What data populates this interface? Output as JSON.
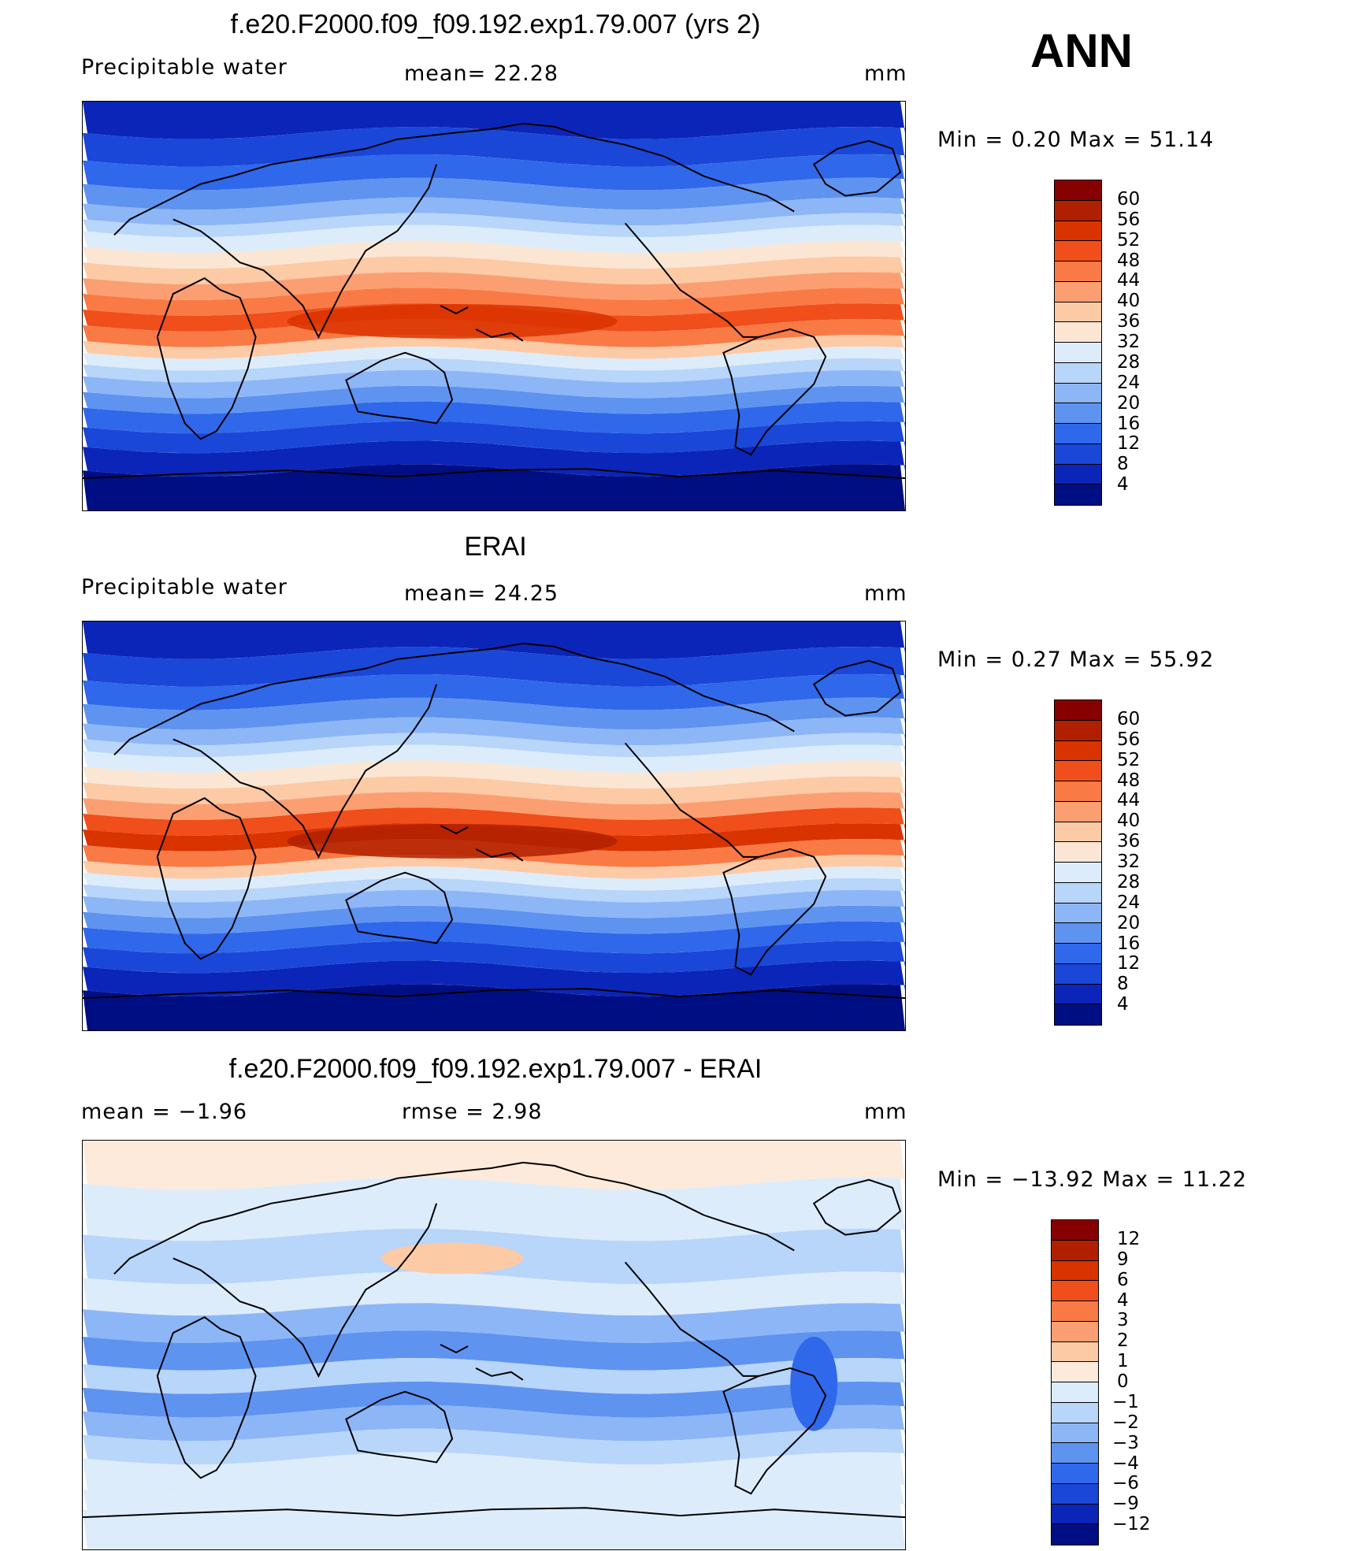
{
  "annotation": "ANN",
  "panels": [
    {
      "title": "f.e20.F2000.f09_f09.192.exp1.79.007 (yrs 2)",
      "left_label": "Precipitable  water",
      "center_label": "mean=   22.28",
      "units": "mm",
      "minmax": "Min  =     0.20  Max  =     51.14",
      "colorbar_levels": [
        "60",
        "56",
        "52",
        "48",
        "44",
        "40",
        "36",
        "32",
        "28",
        "24",
        "20",
        "16",
        "12",
        "8",
        "4"
      ],
      "colorbar_colors": [
        "#870000",
        "#b02000",
        "#d93300",
        "#f04e1a",
        "#fa7a45",
        "#fb9f72",
        "#fdcaa6",
        "#fbe6d4",
        "#dcecfb",
        "#b8d5fa",
        "#8db6f7",
        "#5f93f0",
        "#2f68ea",
        "#1a47d8",
        "#0b25b8",
        "#000e84"
      ],
      "field": "model"
    },
    {
      "title": "ERAI",
      "left_label": "Precipitable  water",
      "center_label": "mean=   24.25",
      "units": "mm",
      "minmax": "Min  =     0.27  Max  =     55.92",
      "colorbar_levels": [
        "60",
        "56",
        "52",
        "48",
        "44",
        "40",
        "36",
        "32",
        "28",
        "24",
        "20",
        "16",
        "12",
        "8",
        "4"
      ],
      "colorbar_colors": [
        "#870000",
        "#b02000",
        "#d93300",
        "#f04e1a",
        "#fa7a45",
        "#fb9f72",
        "#fdcaa6",
        "#fbe6d4",
        "#dcecfb",
        "#b8d5fa",
        "#8db6f7",
        "#5f93f0",
        "#2f68ea",
        "#1a47d8",
        "#0b25b8",
        "#000e84"
      ],
      "field": "obs"
    },
    {
      "title": "f.e20.F2000.f09_f09.192.exp1.79.007 - ERAI",
      "left_label": "mean  =    −1.96",
      "center_label": "rmse  =     2.98",
      "units": "mm",
      "minmax": "Min  = −13.92  Max  =    11.22",
      "colorbar_levels": [
        "12",
        "9",
        "6",
        "4",
        "3",
        "2",
        "1",
        "0",
        "−1",
        "−2",
        "−3",
        "−4",
        "−6",
        "−9",
        "−12"
      ],
      "colorbar_colors": [
        "#870000",
        "#b02000",
        "#d93300",
        "#f04e1a",
        "#fa7a45",
        "#fb9f72",
        "#fdcaa6",
        "#fdeadb",
        "#dcecfb",
        "#b8d5fa",
        "#8db6f7",
        "#5f93f0",
        "#2f68ea",
        "#1a47d8",
        "#0b25b8",
        "#000e84"
      ],
      "field": "diff"
    }
  ]
}
